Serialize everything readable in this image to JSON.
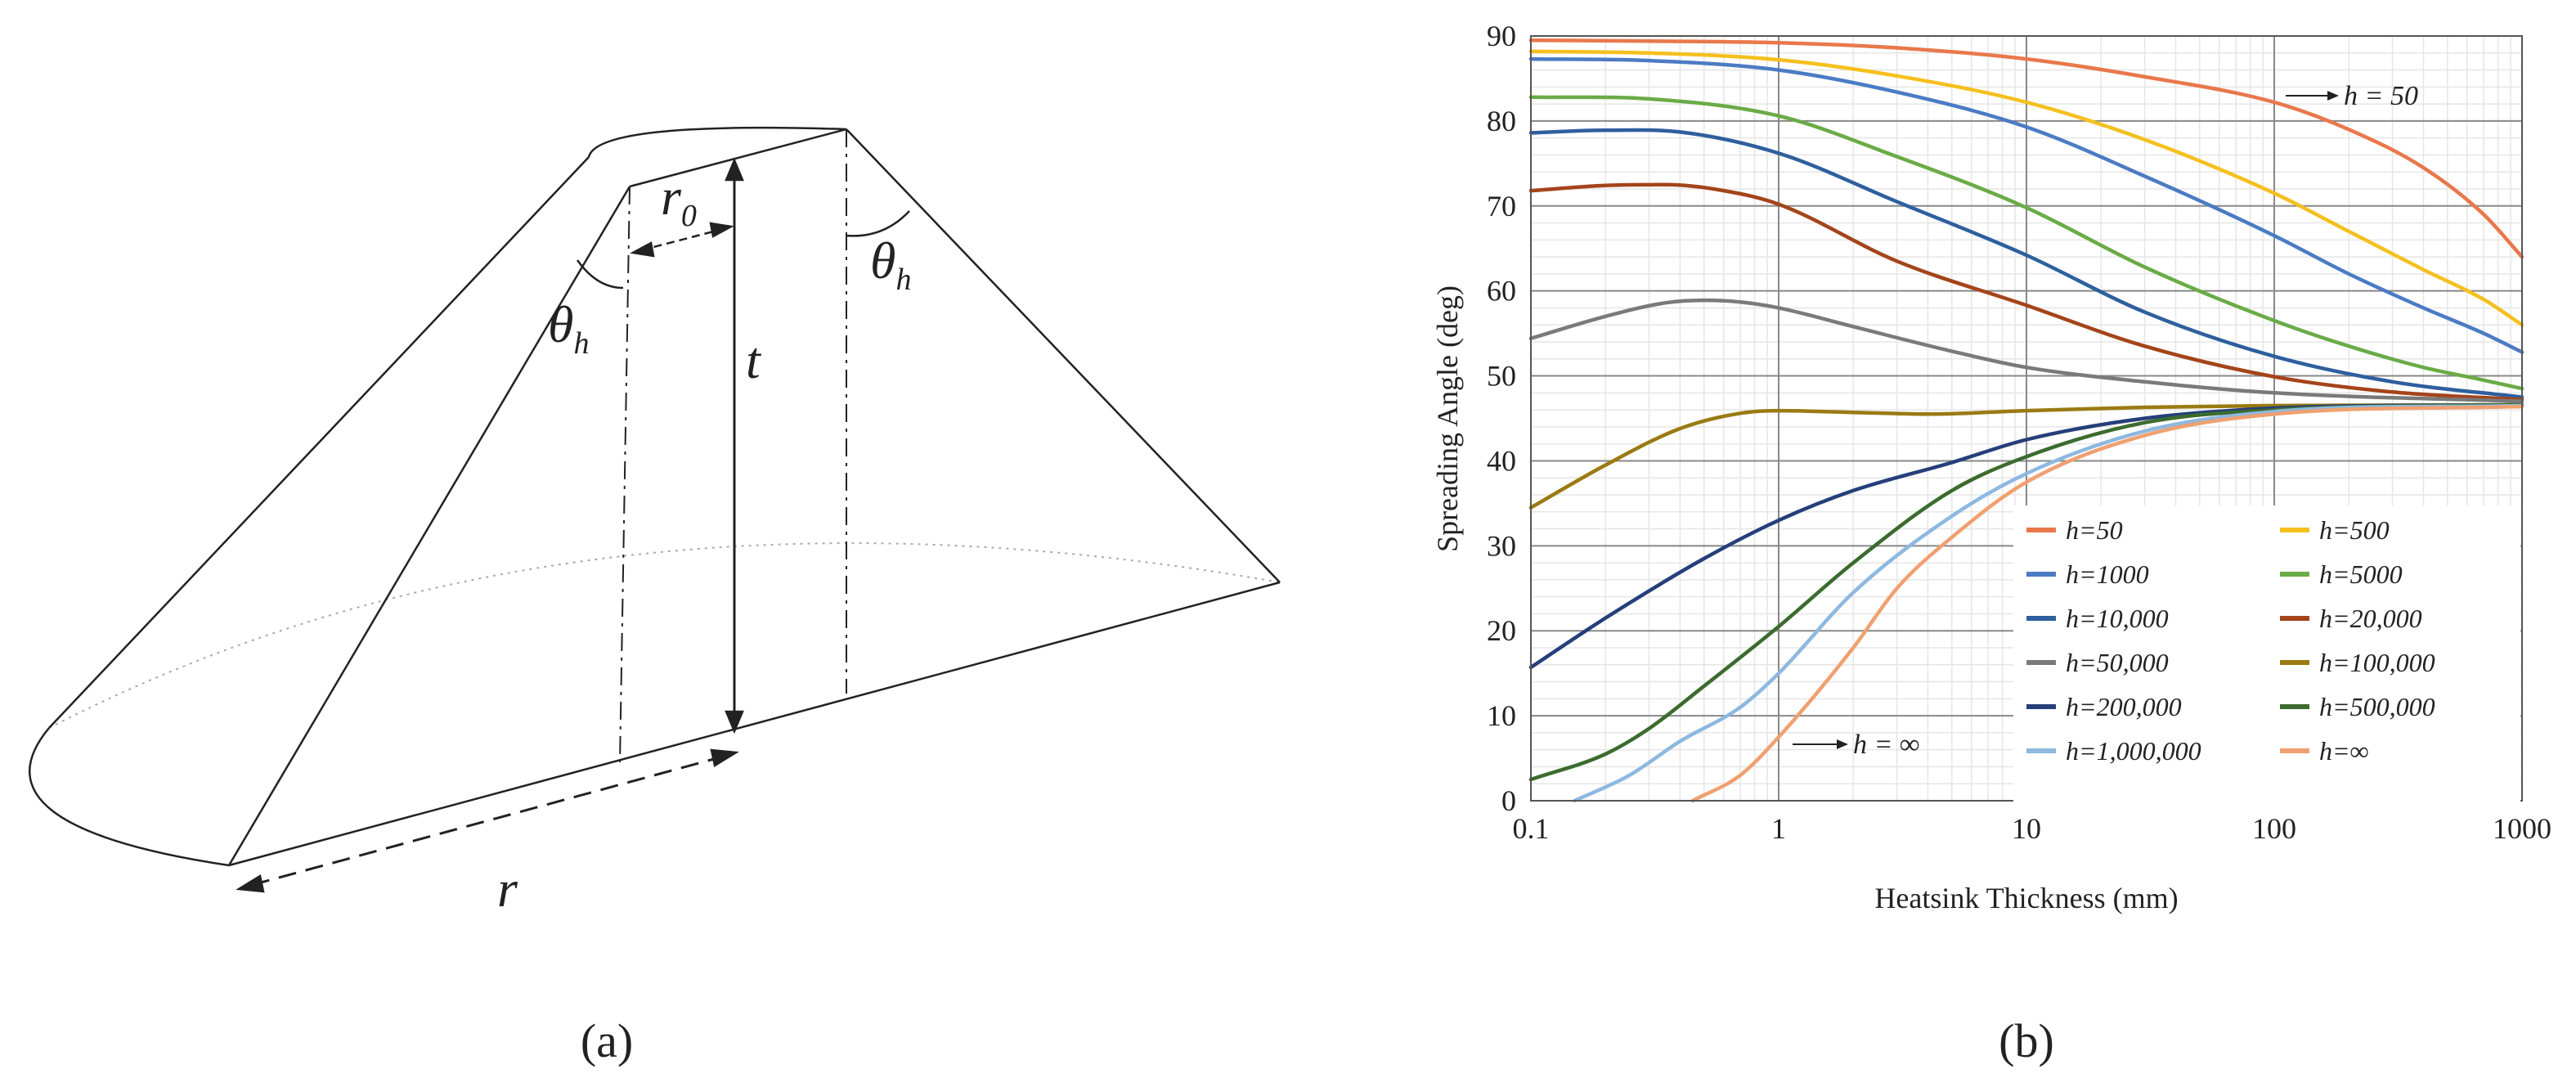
{
  "panel_a": {
    "label": "(a)",
    "symbols": {
      "r0_base": "r",
      "r0_sub": "0",
      "theta_base": "θ",
      "theta_sub": "h",
      "t": "t",
      "r": "r"
    }
  },
  "panel_b": {
    "label": "(b)",
    "annotations": {
      "h50": "h = 50",
      "hinf": "h = ∞"
    }
  },
  "chart_data": {
    "type": "line",
    "xlabel": "Heatsink Thickness (mm)",
    "ylabel": "Spreading Angle (deg)",
    "x_scale": "log",
    "xlim": [
      0.1,
      1000
    ],
    "ylim": [
      0,
      90
    ],
    "x_ticks": [
      0.1,
      1,
      10,
      100,
      1000
    ],
    "x_tick_labels": [
      "0.1",
      "1",
      "10",
      "100",
      "1000"
    ],
    "y_ticks": [
      0,
      10,
      20,
      30,
      40,
      50,
      60,
      70,
      80,
      90
    ],
    "y_tick_labels": [
      "0",
      "10",
      "20",
      "30",
      "40",
      "50",
      "60",
      "70",
      "80",
      "90"
    ],
    "grid": true,
    "legend_position": "lower-right",
    "series": [
      {
        "name": "h=50",
        "color": "#e8784b",
        "points": [
          [
            0.1,
            89.5
          ],
          [
            0.3,
            89.4
          ],
          [
            1,
            89.2
          ],
          [
            3,
            88.6
          ],
          [
            10,
            87.3
          ],
          [
            30,
            85.2
          ],
          [
            100,
            82.2
          ],
          [
            200,
            79
          ],
          [
            400,
            74.5
          ],
          [
            700,
            69
          ],
          [
            1000,
            64
          ]
        ]
      },
      {
        "name": "h=500",
        "color": "#f5c01e",
        "points": [
          [
            0.1,
            88.2
          ],
          [
            0.3,
            88
          ],
          [
            1,
            87.2
          ],
          [
            3,
            85.3
          ],
          [
            10,
            82.2
          ],
          [
            30,
            77.8
          ],
          [
            100,
            71.5
          ],
          [
            200,
            67
          ],
          [
            400,
            62.5
          ],
          [
            700,
            59
          ],
          [
            1000,
            56
          ]
        ]
      },
      {
        "name": "h=1000",
        "color": "#4b7bc4",
        "points": [
          [
            0.1,
            87.3
          ],
          [
            0.3,
            87.1
          ],
          [
            1,
            86
          ],
          [
            3,
            83.4
          ],
          [
            10,
            79.3
          ],
          [
            30,
            73.5
          ],
          [
            100,
            66.5
          ],
          [
            200,
            62
          ],
          [
            400,
            58
          ],
          [
            700,
            55
          ],
          [
            1000,
            52.8
          ]
        ]
      },
      {
        "name": "h=5000",
        "color": "#6aab47",
        "points": [
          [
            0.1,
            82.8
          ],
          [
            0.3,
            82.6
          ],
          [
            1,
            80.6
          ],
          [
            3,
            75.8
          ],
          [
            10,
            69.8
          ],
          [
            30,
            62.8
          ],
          [
            100,
            56.5
          ],
          [
            200,
            53.5
          ],
          [
            400,
            51
          ],
          [
            700,
            49.5
          ],
          [
            1000,
            48.5
          ]
        ]
      },
      {
        "name": "h=10,000",
        "color": "#2e5f9e",
        "points": [
          [
            0.1,
            78.6
          ],
          [
            0.2,
            78.9
          ],
          [
            0.4,
            78.7
          ],
          [
            1,
            76.2
          ],
          [
            3,
            70.5
          ],
          [
            10,
            64.2
          ],
          [
            30,
            57.5
          ],
          [
            100,
            52.3
          ],
          [
            300,
            49.3
          ],
          [
            1000,
            47.5
          ]
        ]
      },
      {
        "name": "h=20,000",
        "color": "#a4441a",
        "points": [
          [
            0.1,
            71.8
          ],
          [
            0.2,
            72.4
          ],
          [
            0.35,
            72.5
          ],
          [
            0.6,
            71.8
          ],
          [
            1,
            70.2
          ],
          [
            3,
            63.5
          ],
          [
            10,
            58.3
          ],
          [
            30,
            53.5
          ],
          [
            100,
            49.9
          ],
          [
            300,
            48.1
          ],
          [
            1000,
            47.2
          ]
        ]
      },
      {
        "name": "h=50,000",
        "color": "#7a7a7a",
        "points": [
          [
            0.1,
            54.4
          ],
          [
            0.2,
            57
          ],
          [
            0.35,
            58.6
          ],
          [
            0.5,
            58.9
          ],
          [
            0.7,
            58.7
          ],
          [
            1,
            58
          ],
          [
            2,
            55.8
          ],
          [
            5,
            52.9
          ],
          [
            10,
            51
          ],
          [
            30,
            49.3
          ],
          [
            100,
            48
          ],
          [
            1000,
            47
          ]
        ]
      },
      {
        "name": "h=100,000",
        "color": "#9a7a12",
        "points": [
          [
            0.1,
            34.5
          ],
          [
            0.2,
            39.5
          ],
          [
            0.4,
            43.8
          ],
          [
            0.7,
            45.6
          ],
          [
            1,
            45.9
          ],
          [
            2,
            45.7
          ],
          [
            4,
            45.5
          ],
          [
            10,
            45.9
          ],
          [
            30,
            46.3
          ],
          [
            100,
            46.5
          ],
          [
            1000,
            46.6
          ]
        ]
      },
      {
        "name": "h=200,000",
        "color": "#253f7a",
        "points": [
          [
            0.1,
            15.7
          ],
          [
            0.2,
            21.5
          ],
          [
            0.5,
            28.5
          ],
          [
            1,
            33
          ],
          [
            2,
            36.5
          ],
          [
            5,
            39.8
          ],
          [
            10,
            42.5
          ],
          [
            30,
            45
          ],
          [
            100,
            46.2
          ],
          [
            1000,
            46.6
          ]
        ]
      },
      {
        "name": "h=500,000",
        "color": "#3b6b2e",
        "points": [
          [
            0.1,
            2.5
          ],
          [
            0.2,
            5.5
          ],
          [
            0.3,
            8.5
          ],
          [
            0.5,
            13.5
          ],
          [
            1,
            20.5
          ],
          [
            2,
            28
          ],
          [
            5,
            36.5
          ],
          [
            10,
            40.5
          ],
          [
            30,
            44.5
          ],
          [
            100,
            46
          ],
          [
            1000,
            46.6
          ]
        ]
      },
      {
        "name": "h=1,000,000",
        "color": "#8db8e0",
        "points": [
          [
            0.15,
            0
          ],
          [
            0.25,
            3
          ],
          [
            0.4,
            7
          ],
          [
            0.7,
            11
          ],
          [
            1,
            15
          ],
          [
            2,
            24.5
          ],
          [
            5,
            33.5
          ],
          [
            10,
            38.5
          ],
          [
            30,
            43.5
          ],
          [
            100,
            45.8
          ],
          [
            1000,
            46.5
          ]
        ]
      },
      {
        "name": "h=∞",
        "color": "#f0a070",
        "points": [
          [
            0.45,
            0
          ],
          [
            0.7,
            3
          ],
          [
            1,
            7.5
          ],
          [
            2,
            18
          ],
          [
            3,
            25
          ],
          [
            5,
            31
          ],
          [
            10,
            37.5
          ],
          [
            30,
            43
          ],
          [
            100,
            45.5
          ],
          [
            1000,
            46.4
          ]
        ]
      }
    ]
  }
}
